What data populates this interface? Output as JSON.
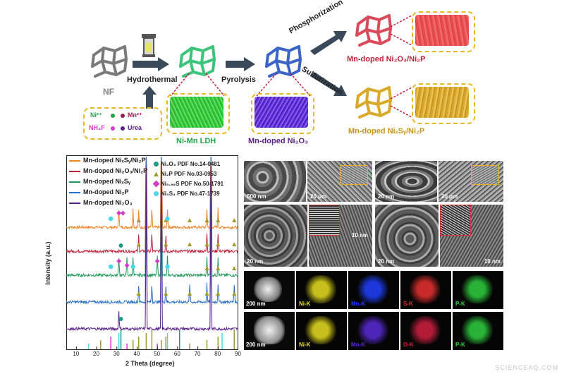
{
  "schematic": {
    "stages": {
      "nf": "NF",
      "ldh": "Ni-Mn LDH",
      "ni2o3": "Mn-doped Ni₂O₃",
      "phosphide": "Mn-doped Ni₂O₃/Ni₂P",
      "sulfide": "Mn-doped NiₓSᵧ/Ni₂P"
    },
    "arrows": {
      "hydrothermal": "Hydrothermal",
      "pyrolysis": "Pyrolysis",
      "phosphorization": "Phosphorization",
      "sulfurization": "Sulfurization"
    },
    "precursors": [
      {
        "label": "Ni²⁺",
        "color": "#1fa64a"
      },
      {
        "label": "Mn²⁺",
        "color": "#9b1c4e"
      },
      {
        "label": "NH₄F",
        "color": "#d23cc9"
      },
      {
        "label": "Urea",
        "color": "#5a1f8a"
      }
    ],
    "colors": {
      "nf": "#7a7a7a",
      "ldh": "#3cc47a",
      "ni2o3": "#3a64c8",
      "phosphide": "#d94a5a",
      "sulfide": "#d9a92a",
      "box": "#e7b825"
    }
  },
  "xrd": {
    "xlabel": "2 Theta (degree)",
    "ylabel": "Intensity (a.u.)",
    "xticks": [
      "10",
      "20",
      "30",
      "40",
      "50",
      "60",
      "70",
      "80",
      "90"
    ],
    "legend": [
      {
        "label": "Mn-doped NiₓSᵧ/Ni₂P",
        "color": "#f0852a"
      },
      {
        "label": "Mn-doped Ni₂O₃/Ni₂P",
        "color": "#c0223a"
      },
      {
        "label": "Mn-doped NiₓSᵧ",
        "color": "#1f9a5a"
      },
      {
        "label": "Mn-doped Ni₂P",
        "color": "#2a6fc8"
      },
      {
        "label": "Mn-doped Ni₂O₃",
        "color": "#5a1f8a"
      }
    ],
    "references": [
      {
        "label": "Ni₂O₃ PDF No.14-0481",
        "color": "#1f9a8a",
        "marker": "club-icon"
      },
      {
        "label": "Ni₂P PDF No.03-0953",
        "color": "#a29a2a",
        "marker": "triangle-icon"
      },
      {
        "label": "Ni₀.₉₆S PDF No.50-1791",
        "color": "#d23cc9",
        "marker": "diamond-icon"
      },
      {
        "label": "Ni₃S₄ PDF No.47-1739",
        "color": "#4ad8e8",
        "marker": "heart-icon"
      }
    ]
  },
  "chart_data": {
    "type": "line",
    "xlabel": "2 Theta (degree)",
    "ylabel": "Intensity (a.u.)",
    "xlim": [
      5,
      90
    ],
    "series": [
      {
        "name": "Mn-doped NiₓSᵧ/Ni₂P",
        "peaks": [
          31,
          38,
          40.8,
          44.5,
          47.3,
          52,
          55,
          74.5,
          76.5,
          80
        ]
      },
      {
        "name": "Mn-doped Ni₂O₃/Ni₂P",
        "peaks": [
          40.8,
          44.5,
          47.3,
          52,
          54.2,
          74.5,
          76.5,
          80
        ]
      },
      {
        "name": "Mn-doped NiₓSᵧ",
        "peaks": [
          31,
          35,
          38,
          44.5,
          50,
          52,
          55,
          74.5,
          76.5,
          80
        ]
      },
      {
        "name": "Mn-doped Ni₂P",
        "peaks": [
          40.8,
          44.5,
          47.3,
          52,
          54.2,
          66,
          74.5,
          76.5,
          80,
          88
        ]
      },
      {
        "name": "Mn-doped Ni₂O₃",
        "peaks": [
          31,
          44.5,
          52,
          76.5
        ]
      }
    ]
  },
  "micrographs": {
    "scale": {
      "a": "500 nm",
      "b": "20 μm",
      "c": "20 nm",
      "d": "20 μm",
      "e": "20 nm",
      "f": "10 nm",
      "g": "20 nm",
      "h": "10 nm",
      "i": "200 nm",
      "j": "200 nm"
    },
    "map_row1": [
      {
        "label": "Ni-K",
        "color": "#e8e020"
      },
      {
        "label": "Mn-K",
        "color": "#2040ff"
      },
      {
        "label": "S-K",
        "color": "#e83030"
      },
      {
        "label": "P-K",
        "color": "#30d040"
      }
    ],
    "map_row2": [
      {
        "label": "Ni-K",
        "color": "#e8e020"
      },
      {
        "label": "Mn-K",
        "color": "#5a2bd8"
      },
      {
        "label": "O-K",
        "color": "#d02040"
      },
      {
        "label": "P-K",
        "color": "#30d040"
      }
    ]
  },
  "watermark": "SCIENCEAQ.COM"
}
